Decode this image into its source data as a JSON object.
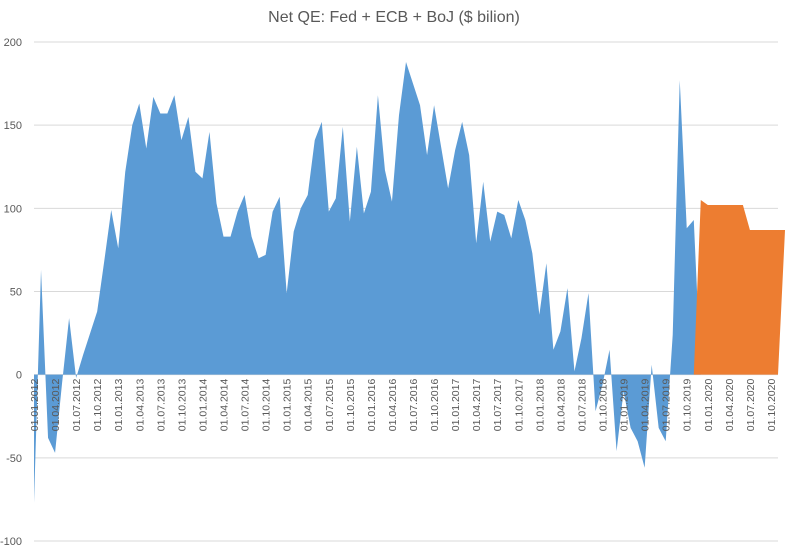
{
  "chart_data": {
    "type": "area",
    "title": "Net QE: Fed + ECB + BoJ ($ bilion)",
    "xlabel": "",
    "ylabel": "",
    "ylim": [
      -100,
      200
    ],
    "yticks": [
      -100,
      -50,
      0,
      50,
      100,
      150,
      200
    ],
    "grid": true,
    "legend": "none",
    "x_tick_labels": [
      "01.01.2012",
      "01.04.2012",
      "01.07.2012",
      "01.10.2012",
      "01.01.2013",
      "01.04.2013",
      "01.07.2013",
      "01.10.2013",
      "01.01.2014",
      "01.04.2014",
      "01.07.2014",
      "01.10.2014",
      "01.01.2015",
      "01.04.2015",
      "01.07.2015",
      "01.10.2015",
      "01.01.2016",
      "01.04.2016",
      "01.07.2016",
      "01.10.2016",
      "01.01.2017",
      "01.04.2017",
      "01.07.2017",
      "01.10.2017",
      "01.01.2018",
      "01.04.2018",
      "01.07.2018",
      "01.10.2018",
      "01.01.2019",
      "01.04.2019",
      "01.07.2019",
      "01.10.2019",
      "01.01.2020",
      "01.04.2020",
      "01.07.2020",
      "01.10.2020"
    ],
    "x_start": "2012-01",
    "series": [
      {
        "color": "#5b9bd5",
        "values": [
          -77,
          63,
          -38,
          -47,
          -5,
          34,
          -2,
          12,
          25,
          38,
          68,
          99,
          76,
          122,
          150,
          163,
          136,
          167,
          157,
          157,
          168,
          141,
          155,
          122,
          118,
          146,
          103,
          83,
          83,
          98,
          108,
          83,
          70,
          72,
          98,
          107,
          49,
          86,
          100,
          108,
          141,
          152,
          98,
          106,
          149,
          92,
          137,
          97,
          110,
          168,
          123,
          104,
          156,
          188,
          175,
          162,
          132,
          162,
          137,
          112,
          135,
          152,
          132,
          79,
          116,
          80,
          98,
          96,
          82,
          105,
          93,
          73,
          36,
          67,
          15,
          26,
          52,
          2,
          22,
          49,
          -22,
          -6,
          15,
          -46,
          -10,
          -32,
          -40,
          -56,
          6,
          -32,
          -40,
          24,
          177,
          88,
          93,
          0,
          0,
          0,
          0,
          0,
          0,
          0,
          0,
          0,
          0,
          0,
          0
        ]
      },
      {
        "color": "#ed7d31",
        "values": [
          0,
          0,
          0,
          0,
          0,
          0,
          0,
          0,
          0,
          0,
          0,
          0,
          0,
          0,
          0,
          0,
          0,
          0,
          0,
          0,
          0,
          0,
          0,
          0,
          0,
          0,
          0,
          0,
          0,
          0,
          0,
          0,
          0,
          0,
          0,
          0,
          0,
          0,
          0,
          0,
          0,
          0,
          0,
          0,
          0,
          0,
          0,
          0,
          0,
          0,
          0,
          0,
          0,
          0,
          0,
          0,
          0,
          0,
          0,
          0,
          0,
          0,
          0,
          0,
          0,
          0,
          0,
          0,
          0,
          0,
          0,
          0,
          0,
          0,
          0,
          0,
          0,
          0,
          0,
          0,
          0,
          0,
          0,
          0,
          0,
          0,
          0,
          0,
          0,
          0,
          0,
          0,
          0,
          0,
          0,
          105,
          102,
          102,
          102,
          102,
          102,
          102,
          87,
          87,
          87,
          87,
          87,
          87
        ]
      }
    ]
  }
}
